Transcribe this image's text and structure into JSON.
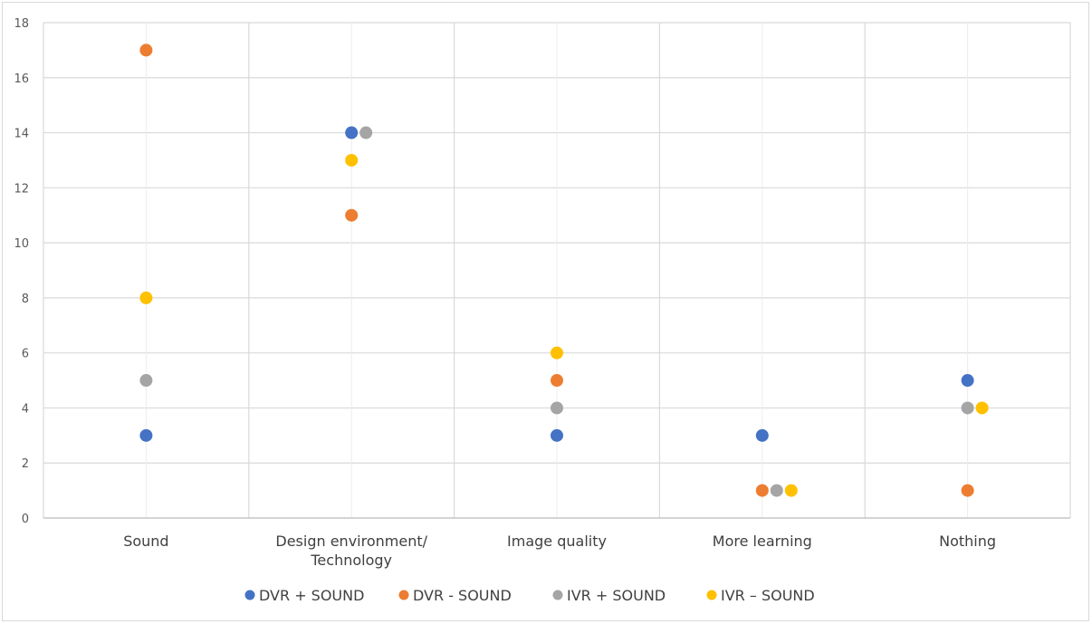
{
  "chart_data": {
    "type": "scatter",
    "title": "",
    "xlabel": "",
    "ylabel": "",
    "categories": [
      "Sound",
      "Design environment/\nTechnology",
      "Image quality",
      "More learning",
      "Nothing"
    ],
    "ylim": [
      0,
      18
    ],
    "yticks": [
      0,
      2,
      4,
      6,
      8,
      10,
      12,
      14,
      16,
      18
    ],
    "grid": true,
    "legend_position": "bottom",
    "series": [
      {
        "name": "DVR + SOUND",
        "color": "#4472c4",
        "values": [
          3,
          14,
          3,
          3,
          5
        ]
      },
      {
        "name": "DVR - SOUND",
        "color": "#ed7d31",
        "values": [
          17,
          11,
          5,
          1,
          1
        ]
      },
      {
        "name": "IVR + SOUND",
        "color": "#a5a5a5",
        "values": [
          5,
          14,
          4,
          1,
          4
        ]
      },
      {
        "name": "IVR – SOUND",
        "color": "#ffc000",
        "values": [
          8,
          13,
          6,
          1,
          4
        ]
      }
    ]
  }
}
